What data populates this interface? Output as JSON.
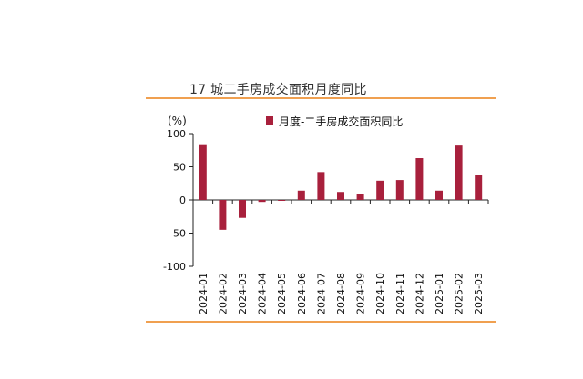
{
  "figure_title": "17 城二手房成交面积月度同比",
  "colors": {
    "bar": "#a8203c",
    "rule": "#f0a050",
    "axis": "#222222"
  },
  "chart_data": {
    "type": "bar",
    "unit": "(%)",
    "legend_position": "top-center",
    "categories": [
      "2024-01",
      "2024-02",
      "2024-03",
      "2024-04",
      "2024-05",
      "2024-06",
      "2024-07",
      "2024-08",
      "2024-09",
      "2024-10",
      "2024-11",
      "2024-12",
      "2025-01",
      "2025-02",
      "2025-03"
    ],
    "series": [
      {
        "name": "月度-二手房成交面积同比",
        "values": [
          84,
          -45,
          -27,
          -3,
          -1,
          14,
          42,
          12,
          9,
          29,
          30,
          63,
          14,
          82,
          37
        ]
      }
    ],
    "ylim": [
      -100,
      100
    ],
    "yticks": [
      100,
      50,
      0,
      -50,
      -100
    ],
    "grid": false
  }
}
